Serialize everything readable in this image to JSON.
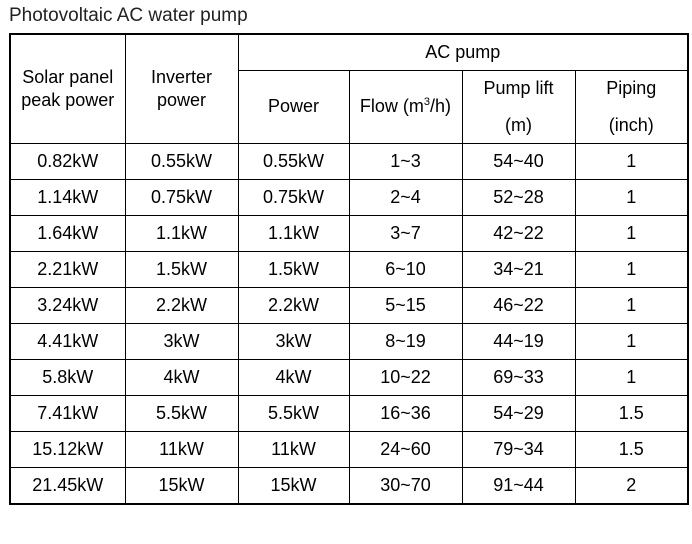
{
  "title": "Photovoltaic AC water pump",
  "headers": {
    "solar_line1": "Solar panel",
    "solar_line2": "peak power",
    "inverter_line1": "Inverter",
    "inverter_line2": "power",
    "ac_pump": "AC pump",
    "power": "Power",
    "flow_prefix": "Flow (m",
    "flow_sup": "3",
    "flow_suffix": "/h)",
    "lift_line1": "Pump lift",
    "lift_line2": "(m)",
    "piping_line1": "Piping",
    "piping_line2": "(inch)"
  },
  "rows": [
    [
      "0.82kW",
      "0.55kW",
      "0.55kW",
      "1~3",
      "54~40",
      "1"
    ],
    [
      "1.14kW",
      "0.75kW",
      "0.75kW",
      "2~4",
      "52~28",
      "1"
    ],
    [
      "1.64kW",
      "1.1kW",
      "1.1kW",
      "3~7",
      "42~22",
      "1"
    ],
    [
      "2.21kW",
      "1.5kW",
      "1.5kW",
      "6~10",
      "34~21",
      "1"
    ],
    [
      "3.24kW",
      "2.2kW",
      "2.2kW",
      "5~15",
      "46~22",
      "1"
    ],
    [
      "4.41kW",
      "3kW",
      "3kW",
      "8~19",
      "44~19",
      "1"
    ],
    [
      "5.8kW",
      "4kW",
      "4kW",
      "10~22",
      "69~33",
      "1"
    ],
    [
      "7.41kW",
      "5.5kW",
      "5.5kW",
      "16~36",
      "54~29",
      "1.5"
    ],
    [
      "15.12kW",
      "11kW",
      "11kW",
      "24~60",
      "79~34",
      "1.5"
    ],
    [
      "21.45kW",
      "15kW",
      "15kW",
      "30~70",
      "91~44",
      "2"
    ]
  ]
}
